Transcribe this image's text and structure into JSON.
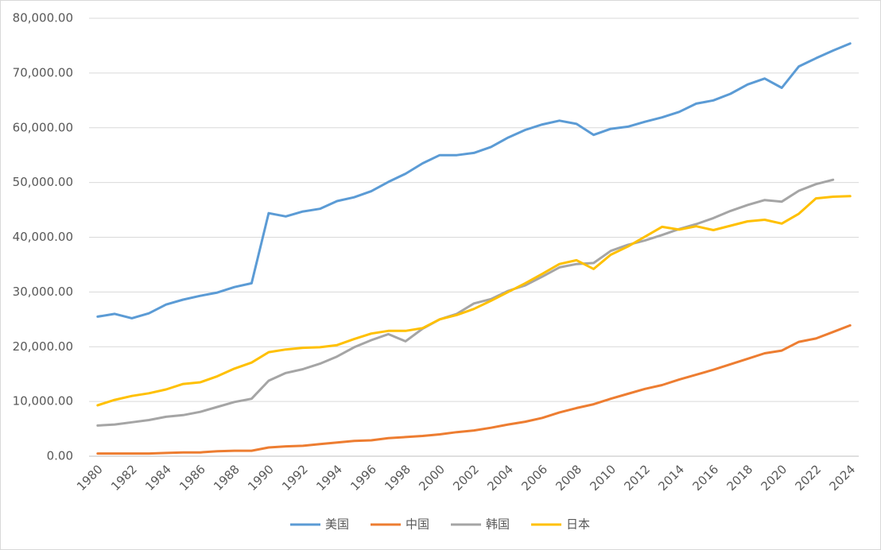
{
  "chart_data": {
    "type": "line",
    "categories": [
      "1980",
      null,
      "1982",
      null,
      "1984",
      null,
      "1986",
      null,
      "1988",
      null,
      "1990",
      null,
      "1992",
      null,
      "1994",
      null,
      "1996",
      null,
      "1998",
      null,
      "2000",
      null,
      "2002",
      null,
      "2004",
      null,
      "2006",
      null,
      "2008",
      null,
      "2010",
      null,
      "2012",
      null,
      "2014",
      null,
      "2016",
      null,
      "2018",
      null,
      "2020",
      null,
      "2022",
      null,
      "2024"
    ],
    "series": [
      {
        "name": "美国",
        "color": "#5b9bd5",
        "values": [
          25500,
          26000,
          25200,
          26100,
          27700,
          28600,
          29300,
          29900,
          30900,
          31600,
          44400,
          43800,
          44700,
          45200,
          46600,
          47300,
          48400,
          50100,
          51600,
          53500,
          55000,
          55000,
          55400,
          56500,
          58200,
          59600,
          60600,
          61300,
          60700,
          58700,
          59800,
          60200,
          61100,
          61900,
          62900,
          64400,
          65000,
          66200,
          67900,
          69000,
          67300,
          71200,
          72700,
          74100,
          75400
        ]
      },
      {
        "name": "中国",
        "color": "#ed7d31",
        "values": [
          500,
          500,
          500,
          500,
          600,
          700,
          700,
          900,
          1000,
          1000,
          1600,
          1800,
          1900,
          2200,
          2500,
          2800,
          2900,
          3300,
          3500,
          3700,
          4000,
          4400,
          4700,
          5200,
          5800,
          6300,
          7000,
          8000,
          8800,
          9500,
          10500,
          11400,
          12300,
          13000,
          14000,
          14900,
          15800,
          16800,
          17800,
          18800,
          19300,
          20900,
          21500,
          22700,
          23900
        ]
      },
      {
        "name": "韩国",
        "color": "#a5a5a5",
        "values": [
          5600,
          5800,
          6200,
          6600,
          7200,
          7500,
          8100,
          9000,
          9900,
          10500,
          13800,
          15200,
          15900,
          16900,
          18200,
          19900,
          21200,
          22300,
          21000,
          23300,
          25000,
          26000,
          27900,
          28700,
          30200,
          31200,
          32800,
          34500,
          35100,
          35300,
          37500,
          38600,
          39400,
          40400,
          41500,
          42400,
          43500,
          44800,
          45900,
          46800,
          46500,
          48500,
          49700,
          50500,
          null
        ]
      },
      {
        "name": "日本",
        "color": "#ffc000",
        "values": [
          9300,
          10300,
          11000,
          11500,
          12200,
          13200,
          13500,
          14600,
          16000,
          17100,
          19000,
          19500,
          19800,
          19900,
          20300,
          21400,
          22400,
          22900,
          22900,
          23400,
          25000,
          25800,
          26900,
          28400,
          30000,
          31600,
          33300,
          35100,
          35800,
          34200,
          36800,
          38300,
          40100,
          41900,
          41400,
          42000,
          41300,
          42100,
          42900,
          43200,
          42500,
          44300,
          47100,
          47400,
          47500
        ]
      }
    ],
    "ylim": [
      0,
      80000
    ],
    "yticks": [
      {
        "value": 0,
        "label": "0.00"
      },
      {
        "value": 10000,
        "label": "10,000.00"
      },
      {
        "value": 20000,
        "label": "20,000.00"
      },
      {
        "value": 30000,
        "label": "30,000.00"
      },
      {
        "value": 40000,
        "label": "40,000.00"
      },
      {
        "value": 50000,
        "label": "50,000.00"
      },
      {
        "value": 60000,
        "label": "60,000.00"
      },
      {
        "value": 70000,
        "label": "70,000.00"
      },
      {
        "value": 80000,
        "label": "80,000.00"
      }
    ],
    "grid": true,
    "legend": "bottom"
  }
}
